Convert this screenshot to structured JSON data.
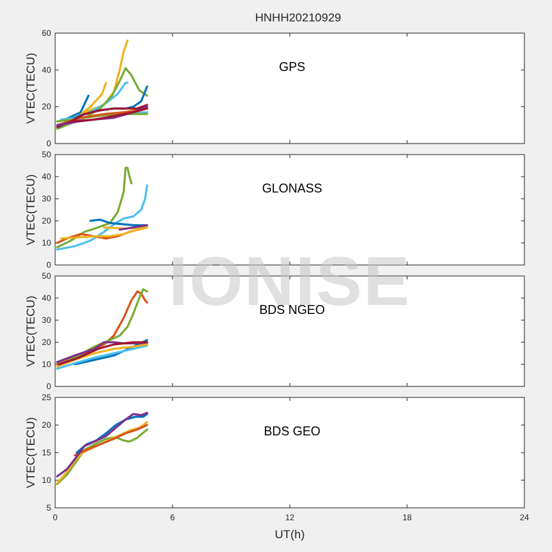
{
  "figure": {
    "title": "HNHH20210929",
    "xlabel": "UT(h)",
    "watermark": "IONISE"
  },
  "chart_data": [
    {
      "type": "line",
      "label": "GPS",
      "ylabel": "VTEC(TECU)",
      "xlim": [
        0,
        24
      ],
      "ylim": [
        0,
        60
      ],
      "xticks": [
        0,
        6,
        12,
        18,
        24
      ],
      "yticks": [
        0,
        20,
        40,
        60
      ],
      "series": [
        {
          "color": "#0072BD",
          "points": [
            [
              0.5,
              13
            ],
            [
              0.9,
              15
            ],
            [
              1.3,
              17
            ],
            [
              1.7,
              26
            ]
          ]
        },
        {
          "color": "#EDB120",
          "points": [
            [
              0.5,
              12
            ],
            [
              1.2,
              15
            ],
            [
              1.8,
              20
            ],
            [
              2.4,
              27
            ],
            [
              2.6,
              33
            ]
          ]
        },
        {
          "color": "#EDB120",
          "points": [
            [
              1.5,
              17
            ],
            [
              2.5,
              21
            ],
            [
              3.0,
              28
            ],
            [
              3.3,
              40
            ],
            [
              3.5,
              50
            ],
            [
              3.7,
              56
            ]
          ]
        },
        {
          "color": "#4DBEEE",
          "points": [
            [
              0.3,
              13
            ],
            [
              1.0,
              14
            ],
            [
              1.8,
              17
            ],
            [
              2.6,
              22
            ],
            [
              3.2,
              27
            ],
            [
              3.6,
              33
            ],
            [
              3.7,
              33
            ]
          ]
        },
        {
          "color": "#77AC30",
          "points": [
            [
              0.1,
              8
            ],
            [
              0.8,
              11
            ],
            [
              1.5,
              14
            ],
            [
              2.3,
              19
            ],
            [
              2.9,
              26
            ],
            [
              3.3,
              34
            ],
            [
              3.6,
              41
            ],
            [
              3.9,
              37
            ],
            [
              4.3,
              29
            ],
            [
              4.7,
              26
            ]
          ]
        },
        {
          "color": "#0072BD",
          "points": [
            [
              0.2,
              9
            ],
            [
              1.2,
              15
            ],
            [
              2.2,
              18
            ],
            [
              3.0,
              19
            ],
            [
              3.6,
              19
            ],
            [
              4.0,
              20
            ],
            [
              4.4,
              23
            ],
            [
              4.7,
              31
            ]
          ]
        },
        {
          "color": "#4DBEEE",
          "points": [
            [
              0.1,
              10
            ],
            [
              1.5,
              14
            ],
            [
              3.0,
              16
            ],
            [
              4.7,
              17
            ]
          ]
        },
        {
          "color": "#77AC30",
          "points": [
            [
              0.1,
              12
            ],
            [
              1.5,
              14
            ],
            [
              3.0,
              16
            ],
            [
              4.7,
              16
            ]
          ]
        },
        {
          "color": "#D95319",
          "points": [
            [
              0.1,
              10
            ],
            [
              1.3,
              14
            ],
            [
              2.5,
              16
            ],
            [
              3.5,
              17
            ],
            [
              4.7,
              19
            ]
          ]
        },
        {
          "color": "#A2142F",
          "points": [
            [
              0.1,
              9
            ],
            [
              0.8,
              12
            ],
            [
              1.5,
              16
            ],
            [
              2.3,
              18
            ],
            [
              3.0,
              19
            ],
            [
              3.7,
              19
            ],
            [
              4.2,
              19
            ],
            [
              4.7,
              21
            ]
          ]
        },
        {
          "color": "#7E2F8E",
          "points": [
            [
              0.1,
              10
            ],
            [
              1.2,
              12
            ],
            [
              2.0,
              13
            ],
            [
              3.0,
              14
            ],
            [
              4.0,
              17
            ],
            [
              4.7,
              20
            ]
          ]
        },
        {
          "color": "#A2142F",
          "points": [
            [
              0.8,
              12
            ],
            [
              2.0,
              13
            ],
            [
              3.0,
              15
            ],
            [
              4.0,
              17
            ],
            [
              4.7,
              19
            ]
          ]
        }
      ]
    },
    {
      "type": "line",
      "label": "GLONASS",
      "ylabel": "VTEC(TECU)",
      "xlim": [
        0,
        24
      ],
      "ylim": [
        0,
        50
      ],
      "xticks": [
        0,
        6,
        12,
        18,
        24
      ],
      "yticks": [
        0,
        10,
        20,
        30,
        40,
        50
      ],
      "series": [
        {
          "color": "#77AC30",
          "points": [
            [
              0.1,
              8
            ],
            [
              0.8,
              11
            ],
            [
              1.5,
              15
            ],
            [
              2.2,
              17
            ],
            [
              2.8,
              19
            ],
            [
              3.2,
              24
            ],
            [
              3.5,
              33
            ],
            [
              3.6,
              44
            ],
            [
              3.7,
              44
            ],
            [
              3.8,
              40
            ],
            [
              3.9,
              37
            ]
          ]
        },
        {
          "color": "#4DBEEE",
          "points": [
            [
              0.1,
              7
            ],
            [
              1.0,
              8.5
            ],
            [
              1.8,
              11
            ],
            [
              2.5,
              15
            ],
            [
              3.1,
              19
            ],
            [
              3.5,
              21
            ],
            [
              4.0,
              22
            ],
            [
              4.4,
              25
            ],
            [
              4.6,
              30
            ],
            [
              4.7,
              36
            ]
          ]
        },
        {
          "color": "#0072BD",
          "points": [
            [
              1.8,
              20
            ],
            [
              2.3,
              20.5
            ],
            [
              2.8,
              19
            ],
            [
              3.4,
              18.5
            ],
            [
              4.0,
              18
            ],
            [
              4.7,
              18
            ]
          ]
        },
        {
          "color": "#D95319",
          "points": [
            [
              0.1,
              10
            ],
            [
              0.6,
              12
            ],
            [
              1.3,
              14
            ],
            [
              2.0,
              13
            ],
            [
              2.6,
              12
            ],
            [
              3.2,
              13
            ],
            [
              3.8,
              15
            ],
            [
              4.7,
              17
            ]
          ]
        },
        {
          "color": "#EDB120",
          "points": [
            [
              0.3,
              12
            ],
            [
              1.2,
              12.5
            ],
            [
              2.0,
              13
            ],
            [
              2.8,
              13
            ],
            [
              3.5,
              14
            ],
            [
              4.2,
              16
            ],
            [
              4.7,
              17
            ]
          ]
        },
        {
          "color": "#EDB120",
          "points": [
            [
              2.5,
              17
            ],
            [
              3.5,
              16.5
            ],
            [
              4.7,
              17
            ]
          ]
        },
        {
          "color": "#7E2F8E",
          "points": [
            [
              3.3,
              16
            ],
            [
              4.0,
              17
            ],
            [
              4.7,
              18
            ]
          ]
        }
      ]
    },
    {
      "type": "line",
      "label": "BDS NGEO",
      "ylabel": "VTEC(TECU)",
      "xlim": [
        0,
        24
      ],
      "ylim": [
        0,
        50
      ],
      "xticks": [
        0,
        6,
        12,
        18,
        24
      ],
      "yticks": [
        0,
        10,
        20,
        30,
        40,
        50
      ],
      "series": [
        {
          "color": "#D95319",
          "points": [
            [
              0.1,
              10
            ],
            [
              1.0,
              13
            ],
            [
              1.8,
              16
            ],
            [
              2.5,
              19
            ],
            [
              3.0,
              23
            ],
            [
              3.5,
              31
            ],
            [
              3.9,
              39
            ],
            [
              4.2,
              43
            ],
            [
              4.4,
              42
            ],
            [
              4.6,
              39
            ],
            [
              4.7,
              38
            ]
          ]
        },
        {
          "color": "#77AC30",
          "points": [
            [
              0.2,
              10
            ],
            [
              1.0,
              13
            ],
            [
              2.0,
              18
            ],
            [
              2.8,
              21
            ],
            [
              3.3,
              23
            ],
            [
              3.7,
              27
            ],
            [
              4.0,
              33
            ],
            [
              4.3,
              40
            ],
            [
              4.5,
              44
            ],
            [
              4.7,
              43
            ]
          ]
        },
        {
          "color": "#0072BD",
          "points": [
            [
              1.0,
              10
            ],
            [
              2.0,
              12
            ],
            [
              3.0,
              14
            ],
            [
              4.0,
              18
            ],
            [
              4.7,
              21
            ]
          ]
        },
        {
          "color": "#4DBEEE",
          "points": [
            [
              0.1,
              8
            ],
            [
              1.0,
              10.5
            ],
            [
              2.0,
              13
            ],
            [
              3.0,
              15
            ],
            [
              4.0,
              17
            ],
            [
              4.7,
              18.5
            ]
          ]
        },
        {
          "color": "#7E2F8E",
          "points": [
            [
              0.1,
              11
            ],
            [
              1.0,
              14
            ],
            [
              2.0,
              17
            ],
            [
              2.5,
              20
            ],
            [
              3.0,
              20
            ],
            [
              3.5,
              19.5
            ],
            [
              4.0,
              19.5
            ],
            [
              4.7,
              19.5
            ]
          ]
        },
        {
          "color": "#EDB120",
          "points": [
            [
              0.1,
              9
            ],
            [
              1.0,
              12
            ],
            [
              2.0,
              15
            ],
            [
              3.0,
              17
            ],
            [
              4.0,
              18
            ],
            [
              4.7,
              19
            ]
          ]
        },
        {
          "color": "#A2142F",
          "points": [
            [
              0.2,
              10
            ],
            [
              1.2,
              13
            ],
            [
              2.2,
              17
            ],
            [
              3.0,
              19
            ],
            [
              4.0,
              20
            ],
            [
              4.7,
              20
            ]
          ]
        }
      ]
    },
    {
      "type": "line",
      "label": "BDS GEO",
      "ylabel": "VTEC(TECU)",
      "xlim": [
        0,
        24
      ],
      "ylim": [
        5,
        25
      ],
      "xticks": [
        0,
        6,
        12,
        18,
        24
      ],
      "xticklabels": [
        "0",
        "6",
        "12",
        "18",
        "24"
      ],
      "yticks": [
        5,
        10,
        15,
        20,
        25
      ],
      "series": [
        {
          "color": "#77AC30",
          "points": [
            [
              0.1,
              9.3
            ],
            [
              0.6,
              11
            ],
            [
              1.1,
              13.5
            ],
            [
              1.5,
              15.5
            ],
            [
              2.0,
              16.5
            ],
            [
              2.6,
              17.5
            ],
            [
              3.1,
              17.8
            ],
            [
              3.5,
              17.2
            ],
            [
              3.8,
              17
            ],
            [
              4.2,
              17.7
            ],
            [
              4.7,
              19.2
            ]
          ]
        },
        {
          "color": "#EDB120",
          "points": [
            [
              0.1,
              9.5
            ],
            [
              0.6,
              11.5
            ],
            [
              1.0,
              13.5
            ],
            [
              1.4,
              15
            ],
            [
              2.0,
              16
            ],
            [
              2.6,
              17
            ],
            [
              3.2,
              18
            ],
            [
              3.8,
              19
            ],
            [
              4.3,
              19.5
            ],
            [
              4.7,
              20.5
            ]
          ]
        },
        {
          "color": "#D95319",
          "points": [
            [
              1.0,
              14.5
            ],
            [
              1.6,
              15.5
            ],
            [
              2.3,
              16.5
            ],
            [
              3.0,
              17.5
            ],
            [
              3.6,
              18.5
            ],
            [
              4.2,
              19.2
            ],
            [
              4.7,
              20
            ]
          ]
        },
        {
          "color": "#0072BD",
          "points": [
            [
              1.1,
              15
            ],
            [
              1.6,
              16.5
            ],
            [
              2.1,
              17.2
            ],
            [
              2.6,
              18.5
            ],
            [
              3.1,
              20
            ],
            [
              3.6,
              21
            ],
            [
              4.1,
              21.5
            ],
            [
              4.5,
              21.5
            ],
            [
              4.7,
              22
            ]
          ]
        },
        {
          "color": "#7E2F8E",
          "points": [
            [
              0.1,
              10.7
            ],
            [
              0.6,
              12
            ],
            [
              1.0,
              13.8
            ],
            [
              1.5,
              16.2
            ],
            [
              2.0,
              17
            ],
            [
              2.6,
              18
            ],
            [
              3.1,
              19.5
            ],
            [
              3.6,
              21
            ],
            [
              4.0,
              22
            ],
            [
              4.4,
              21.8
            ],
            [
              4.7,
              22.2
            ]
          ]
        }
      ]
    }
  ]
}
